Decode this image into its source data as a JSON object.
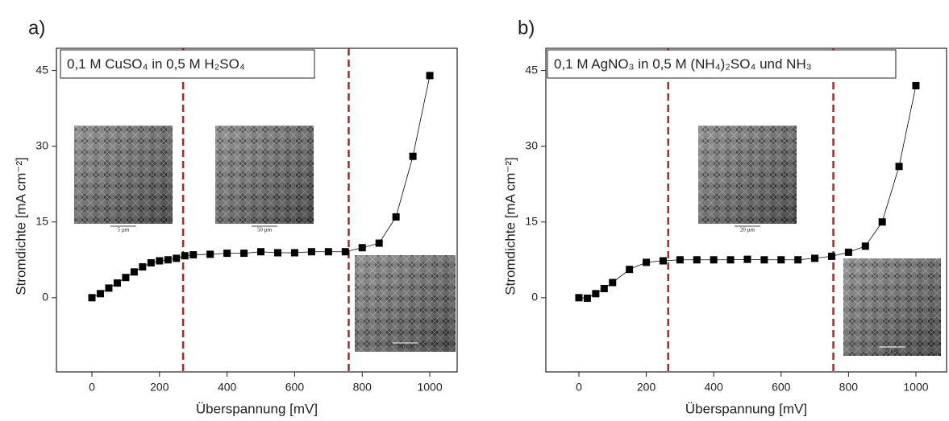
{
  "chart_data": [
    {
      "type": "line",
      "panel_label": "a)",
      "annotation": "0,1 M CuSO₄ in 0,5 M H₂SO₄",
      "x_label": "Überspannung [mV]",
      "y_label": "Stromdichte [mA cm⁻²]",
      "x": [
        0,
        25,
        50,
        75,
        100,
        125,
        150,
        175,
        200,
        225,
        250,
        275,
        300,
        350,
        400,
        450,
        500,
        550,
        600,
        650,
        700,
        750,
        800,
        850,
        900,
        950,
        1000
      ],
      "series": [
        {
          "color": "#000000",
          "values": [
            0,
            0.8,
            1.9,
            2.9,
            4.0,
            5.1,
            6.1,
            6.9,
            7.3,
            7.5,
            7.8,
            8.3,
            8.5,
            8.6,
            8.8,
            8.8,
            9.1,
            8.9,
            8.9,
            9.1,
            9.1,
            9.1,
            9.9,
            10.8,
            16,
            28,
            44
          ]
        }
      ],
      "reference_lines": {
        "x": [
          270,
          760
        ],
        "color": "#a52a2a"
      },
      "insets": [
        {
          "scale": "5 µm"
        },
        {
          "scale": "50 µm"
        },
        {
          "scale": "200 µm"
        }
      ],
      "xlim": [
        -105,
        1081
      ],
      "ylim": [
        -14.7,
        49.4
      ],
      "xticks": [
        0,
        200,
        400,
        600,
        800,
        1000
      ],
      "yticks": [
        0,
        15,
        30,
        45
      ]
    },
    {
      "type": "line",
      "panel_label": "b)",
      "annotation": "0,1 M AgNO₃ in 0,5 M (NH₄)₂SO₄ und NH₃",
      "x_label": "Überspannung [mV]",
      "y_label": "Stromdichte [mA cm⁻²]",
      "x": [
        0,
        25,
        50,
        75,
        100,
        150,
        200,
        250,
        300,
        350,
        400,
        450,
        500,
        550,
        600,
        650,
        700,
        750,
        800,
        850,
        900,
        950,
        1000
      ],
      "series": [
        {
          "color": "#000000",
          "values": [
            0,
            -0.1,
            0.8,
            1.8,
            3,
            5.6,
            7,
            7.3,
            7.5,
            7.5,
            7.5,
            7.5,
            7.6,
            7.5,
            7.5,
            7.5,
            7.8,
            8.2,
            9,
            10.2,
            15,
            26,
            42
          ]
        }
      ],
      "reference_lines": {
        "x": [
          265,
          755
        ],
        "color": "#a52a2a"
      },
      "insets": [
        {
          "scale": "20 µm"
        },
        {
          "scale": "5 µm"
        }
      ],
      "xlim": [
        -98,
        1091
      ],
      "ylim": [
        -14.7,
        49.4
      ],
      "xticks": [
        0,
        200,
        400,
        600,
        800,
        1000
      ],
      "yticks": [
        0,
        15,
        30,
        45
      ]
    }
  ]
}
